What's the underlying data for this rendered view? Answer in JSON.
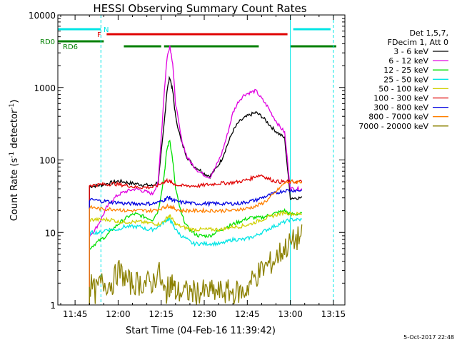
{
  "chart_data": {
    "type": "line",
    "title": "HESSI Observing Summary Count Rates",
    "xlabel": "Start Time (04-Feb-16 11:39:42)",
    "ylabel_main": "Count Rate (s",
    "ylabel_sup1": "-1",
    "ylabel_mid": " detector",
    "ylabel_sup2": "-1",
    "ylabel_end": ")",
    "y_scale": "log",
    "xlim": [
      "11:39",
      "13:19"
    ],
    "ylim": [
      1,
      10000
    ],
    "x_ticks": [
      "11:45",
      "12:00",
      "12:15",
      "12:30",
      "12:45",
      "13:00",
      "13:15"
    ],
    "y_ticks": [
      "1",
      "10",
      "100",
      "1000",
      "10000"
    ],
    "legend_header": [
      "Det 1,5,7,",
      "FDecim 1, Att 0"
    ],
    "legend_placement": "right",
    "footer_stamp": "5-Oct-2017 22:48",
    "flags": [
      {
        "label": "N",
        "color": "#00e5e5",
        "segments": [
          [
            "11:39",
            "11:54"
          ],
          [
            "13:01",
            "13:14"
          ]
        ]
      },
      {
        "label": "F",
        "color": "#e00000",
        "segments": [
          [
            "11:56",
            "12:59"
          ]
        ]
      },
      {
        "label": "RD0",
        "color": "#008000",
        "segments": [
          [
            "11:39",
            "11:55"
          ]
        ]
      },
      {
        "label": "RD6",
        "color": "#008000",
        "segments": [
          [
            "12:02",
            "12:15"
          ],
          [
            "12:16",
            "12:49"
          ],
          [
            "13:00",
            "13:16"
          ]
        ]
      }
    ],
    "vertical_markers": [
      {
        "time": "11:39",
        "style": "solid",
        "color": "#00e5e5"
      },
      {
        "time": "11:54",
        "style": "dashed",
        "color": "#00e5e5"
      },
      {
        "time": "13:00",
        "style": "solid",
        "color": "#00e5e5"
      },
      {
        "time": "13:15",
        "style": "dashed",
        "color": "#00e5e5"
      }
    ],
    "x": [
      "11:50",
      "11:52",
      "11:54",
      "11:56",
      "11:58",
      "12:00",
      "12:02",
      "12:04",
      "12:06",
      "12:08",
      "12:10",
      "12:12",
      "12:14",
      "12:16",
      "12:17",
      "12:18",
      "12:19",
      "12:20",
      "12:22",
      "12:24",
      "12:26",
      "12:28",
      "12:30",
      "12:32",
      "12:34",
      "12:36",
      "12:38",
      "12:40",
      "12:42",
      "12:44",
      "12:46",
      "12:48",
      "12:50",
      "12:52",
      "12:54",
      "12:56",
      "12:58",
      "13:00",
      "13:02",
      "13:04"
    ],
    "series": [
      {
        "name": "3 - 6 keV",
        "color": "#000000",
        "values": [
          43,
          44,
          45,
          47,
          49,
          51,
          50,
          48,
          47,
          46,
          45,
          44,
          50,
          300,
          900,
          1400,
          900,
          400,
          180,
          110,
          85,
          75,
          65,
          60,
          75,
          100,
          160,
          250,
          330,
          380,
          420,
          450,
          400,
          330,
          270,
          230,
          200,
          30,
          30,
          30
        ]
      },
      {
        "name": "6 - 12 keV",
        "color": "#e000e0",
        "values": [
          9,
          11,
          15,
          22,
          28,
          33,
          36,
          38,
          40,
          38,
          36,
          34,
          50,
          800,
          2500,
          3800,
          2200,
          600,
          200,
          110,
          85,
          70,
          62,
          58,
          80,
          120,
          220,
          450,
          650,
          800,
          850,
          900,
          700,
          550,
          400,
          300,
          240,
          40,
          40,
          40
        ]
      },
      {
        "name": "12 - 25 keV",
        "color": "#00e000",
        "values": [
          6,
          7,
          8,
          9,
          11,
          13,
          15,
          17,
          18,
          17,
          16,
          15,
          20,
          60,
          140,
          190,
          100,
          40,
          18,
          12,
          10,
          9,
          9,
          9,
          10,
          11,
          12,
          13,
          14,
          15,
          16,
          16,
          16,
          17,
          18,
          19,
          20,
          18,
          18,
          18
        ]
      },
      {
        "name": "25 - 50 keV",
        "color": "#00e5e5",
        "values": [
          10,
          10,
          10,
          11,
          11,
          11,
          12,
          12,
          12,
          12,
          11,
          11,
          12,
          14,
          15,
          15,
          13,
          11,
          9,
          8,
          7,
          7,
          7,
          7,
          7,
          7,
          7.5,
          8,
          8,
          8,
          8.5,
          9,
          10,
          11,
          12,
          13,
          14,
          15,
          15,
          15
        ]
      },
      {
        "name": "50 - 100 keV",
        "color": "#d0d000",
        "values": [
          15,
          15,
          15,
          15,
          15,
          14,
          14,
          14,
          14,
          14,
          13.5,
          13.5,
          13,
          14,
          16,
          17,
          15,
          13,
          12,
          11.5,
          11,
          11,
          11,
          11,
          11,
          11,
          11.5,
          12,
          12,
          12.5,
          13,
          14,
          15,
          16,
          17,
          18,
          19,
          18,
          18,
          18
        ]
      },
      {
        "name": "100 - 300 keV",
        "color": "#e00000",
        "values": [
          45,
          45,
          46,
          46,
          47,
          46,
          45,
          44,
          42,
          42,
          42,
          42,
          45,
          50,
          52,
          50,
          48,
          46,
          44,
          44,
          44,
          44,
          45,
          46,
          47,
          48,
          48,
          49,
          50,
          52,
          55,
          60,
          62,
          56,
          52,
          50,
          50,
          50,
          50,
          50
        ]
      },
      {
        "name": "300 - 800 keV",
        "color": "#0000e0",
        "values": [
          28,
          28,
          27,
          27,
          26,
          26,
          25,
          25,
          25,
          25,
          25,
          25,
          26,
          28,
          30,
          30,
          28,
          27,
          26,
          26,
          25,
          25,
          25,
          25,
          25,
          25,
          25,
          25,
          25,
          26,
          27,
          28,
          30,
          32,
          34,
          36,
          38,
          38,
          38,
          38
        ]
      },
      {
        "name": "800 - 7000 keV",
        "color": "#ff8000",
        "values": [
          22,
          22,
          21,
          21,
          21,
          21,
          20,
          20,
          20,
          20,
          20,
          20,
          21,
          22,
          23,
          23,
          22,
          21,
          20,
          20,
          20,
          20,
          20,
          20,
          20,
          20,
          20,
          20,
          21,
          21,
          22,
          23,
          25,
          28,
          33,
          40,
          48,
          50,
          50,
          50
        ]
      },
      {
        "name": "7000 - 20000 keV",
        "color": "#8b8000",
        "values": [
          2,
          1.5,
          2,
          2,
          2,
          3,
          2.5,
          2,
          2,
          2,
          2,
          2,
          3,
          1.5,
          1.5,
          2,
          2,
          1.5,
          1.5,
          1.5,
          1.5,
          1.5,
          1.5,
          1.5,
          1.5,
          1.5,
          1.5,
          1.5,
          1.5,
          1.5,
          2,
          2.5,
          3,
          3.5,
          4,
          5,
          6,
          7,
          8,
          9
        ]
      }
    ]
  }
}
